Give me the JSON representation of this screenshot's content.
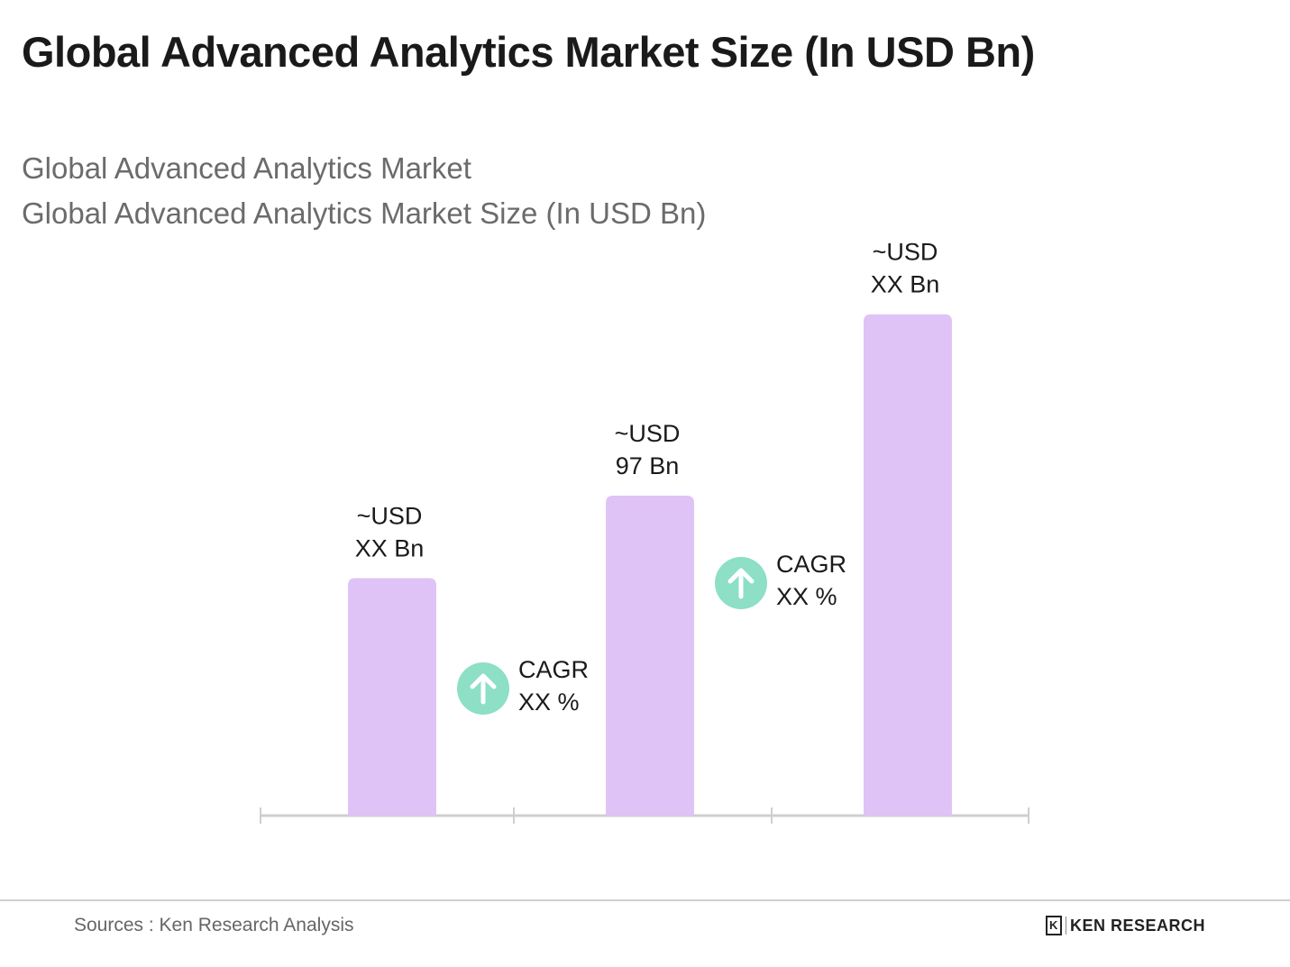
{
  "header": {
    "title": "Global Advanced Analytics Market Size (In USD Bn)",
    "subtitle_1": "Global Advanced Analytics Market",
    "subtitle_2": "Global Advanced Analytics Market Size (In USD Bn)"
  },
  "chart_data": {
    "type": "bar",
    "categories": [
      "",
      "",
      ""
    ],
    "values": [
      72,
      97,
      152
    ],
    "data_labels": [
      [
        "~USD",
        "XX Bn"
      ],
      [
        "~USD",
        "97 Bn"
      ],
      [
        "~USD",
        "XX Bn"
      ]
    ],
    "annotations": [
      {
        "label": "CAGR",
        "value": "XX %",
        "icon": "arrow-up-circle-icon",
        "between": [
          0,
          1
        ]
      },
      {
        "label": "CAGR",
        "value": "XX %",
        "icon": "arrow-up-circle-icon",
        "between": [
          1,
          2
        ]
      }
    ],
    "grid": false,
    "colors": {
      "bar": "#dfc3f7",
      "cagr_icon": "#8ddfc5",
      "axis": "#cfcfcf"
    }
  },
  "footer": {
    "source": "Sources : Ken Research Analysis",
    "logo_text": "KEN RESEARCH"
  }
}
